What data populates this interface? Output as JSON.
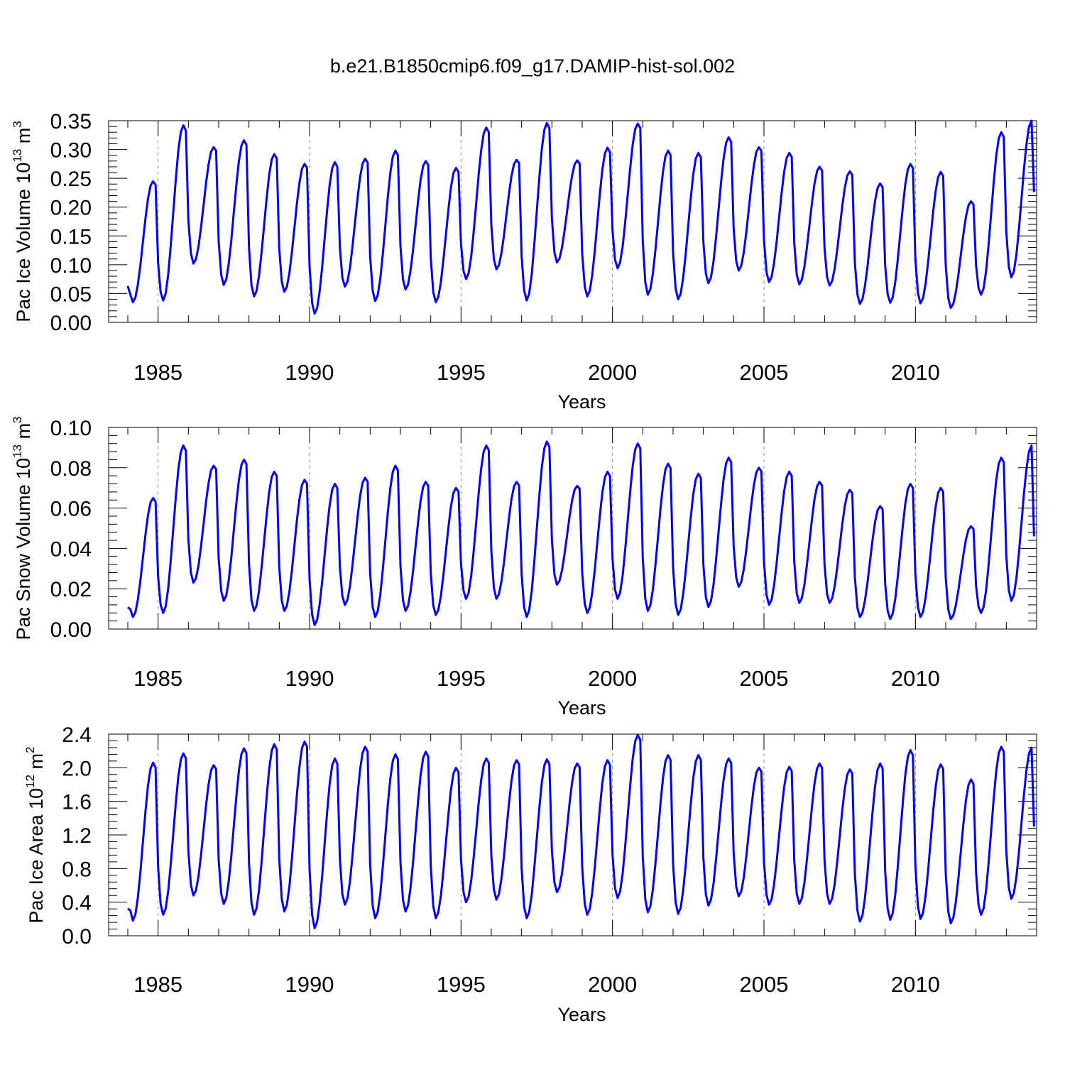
{
  "title": "b.e21.B1850cmip6.f09_g17.DAMIP-hist-sol.002",
  "colors": {
    "line": "#0000ff",
    "axis": "#000000",
    "grid": "#888888"
  },
  "chart_data": [
    {
      "type": "line",
      "ylabel": "Pac Ice Volume 10",
      "ylabel_exp": "13",
      "ylabel_unit": " m",
      "ylabel_unit_exp": "3",
      "xlabel": "Years",
      "xlim": [
        1984.0,
        2014.0
      ],
      "ylim": [
        0.0,
        0.35
      ],
      "xticks": [
        1985,
        1990,
        1995,
        2000,
        2005,
        2010
      ],
      "yticks": [
        0.0,
        0.05,
        0.1,
        0.15,
        0.2,
        0.25,
        0.3,
        0.35
      ],
      "ytick_labels": [
        "0.00",
        "0.05",
        "0.10",
        "0.15",
        "0.20",
        "0.25",
        "0.30",
        "0.35"
      ],
      "series": [
        {
          "name": "Pac Ice Volume",
          "x_start": 1984.0,
          "months_per_year": 12,
          "annual_max": [
            0.245,
            0.342,
            0.304,
            0.316,
            0.292,
            0.275,
            0.278,
            0.284,
            0.298,
            0.28,
            0.268,
            0.338,
            0.282,
            0.346,
            0.281,
            0.303,
            0.345,
            0.298,
            0.294,
            0.321,
            0.304,
            0.294,
            0.27,
            0.262,
            0.241,
            0.275,
            0.261,
            0.21,
            0.33,
            0.35
          ],
          "annual_min": [
            0.035,
            0.038,
            0.102,
            0.065,
            0.045,
            0.053,
            0.015,
            0.062,
            0.037,
            0.057,
            0.035,
            0.075,
            0.092,
            0.038,
            0.104,
            0.045,
            0.094,
            0.048,
            0.04,
            0.068,
            0.09,
            0.07,
            0.066,
            0.064,
            0.032,
            0.034,
            0.033,
            0.025,
            0.048,
            0.078
          ],
          "last_value": 0.226
        }
      ]
    },
    {
      "type": "line",
      "ylabel": "Pac Snow Volume 10",
      "ylabel_exp": "13",
      "ylabel_unit": " m",
      "ylabel_unit_exp": "3",
      "xlabel": "Years",
      "xlim": [
        1984.0,
        2014.0
      ],
      "ylim": [
        0.0,
        0.1
      ],
      "xticks": [
        1985,
        1990,
        1995,
        2000,
        2005,
        2010
      ],
      "yticks": [
        0.0,
        0.02,
        0.04,
        0.06,
        0.08,
        0.1
      ],
      "ytick_labels": [
        "0.00",
        "0.02",
        "0.04",
        "0.06",
        "0.08",
        "0.10"
      ],
      "series": [
        {
          "name": "Pac Snow Volume",
          "x_start": 1984.0,
          "months_per_year": 12,
          "annual_max": [
            0.065,
            0.091,
            0.081,
            0.084,
            0.078,
            0.074,
            0.072,
            0.075,
            0.081,
            0.073,
            0.07,
            0.091,
            0.073,
            0.093,
            0.071,
            0.078,
            0.092,
            0.082,
            0.077,
            0.085,
            0.08,
            0.078,
            0.073,
            0.069,
            0.061,
            0.072,
            0.07,
            0.051,
            0.085,
            0.091
          ],
          "annual_min": [
            0.006,
            0.008,
            0.023,
            0.014,
            0.009,
            0.009,
            0.002,
            0.012,
            0.006,
            0.009,
            0.007,
            0.015,
            0.015,
            0.006,
            0.022,
            0.008,
            0.015,
            0.009,
            0.007,
            0.011,
            0.021,
            0.012,
            0.013,
            0.013,
            0.006,
            0.005,
            0.006,
            0.005,
            0.008,
            0.014
          ],
          "last_value": 0.046
        }
      ]
    },
    {
      "type": "line",
      "ylabel": "Pac Ice Area 10",
      "ylabel_exp": "12",
      "ylabel_unit": " m",
      "ylabel_unit_exp": "2",
      "xlabel": "Years",
      "xlim": [
        1984.0,
        2014.0
      ],
      "ylim": [
        0.0,
        2.4
      ],
      "xticks": [
        1985,
        1990,
        1995,
        2000,
        2005,
        2010
      ],
      "yticks": [
        0.0,
        0.4,
        0.8,
        1.2,
        1.6,
        2.0,
        2.4
      ],
      "ytick_labels": [
        "0.0",
        "0.4",
        "0.8",
        "1.2",
        "1.6",
        "2.0",
        "2.4"
      ],
      "series": [
        {
          "name": "Pac Ice Area",
          "x_start": 1984.0,
          "months_per_year": 12,
          "annual_max": [
            2.06,
            2.17,
            2.03,
            2.23,
            2.28,
            2.31,
            2.11,
            2.25,
            2.16,
            2.19,
            2.0,
            2.11,
            2.09,
            2.1,
            2.05,
            2.09,
            2.39,
            2.15,
            2.15,
            2.11,
            2.0,
            2.01,
            2.05,
            1.98,
            2.05,
            2.21,
            2.04,
            1.86,
            2.25,
            2.24
          ],
          "annual_min": [
            0.18,
            0.25,
            0.48,
            0.38,
            0.25,
            0.29,
            0.09,
            0.37,
            0.21,
            0.29,
            0.21,
            0.4,
            0.43,
            0.21,
            0.52,
            0.25,
            0.45,
            0.28,
            0.26,
            0.36,
            0.47,
            0.37,
            0.38,
            0.38,
            0.17,
            0.19,
            0.2,
            0.15,
            0.25,
            0.44
          ],
          "last_value": 1.3
        }
      ]
    }
  ]
}
